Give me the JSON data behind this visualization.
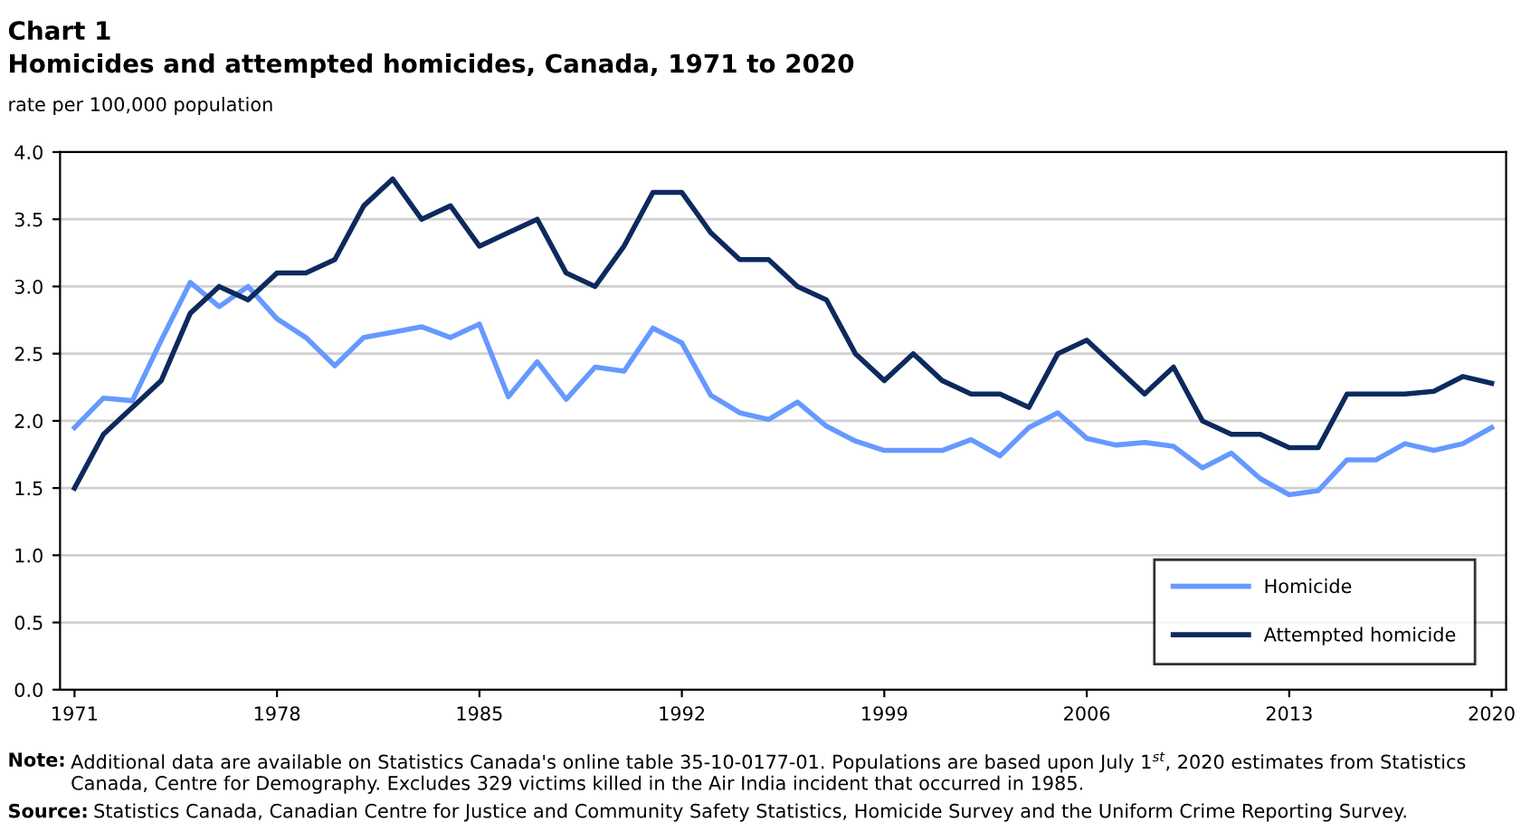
{
  "chart_data": {
    "type": "line",
    "title": "Chart 1",
    "subtitle": "Homicides and attempted homicides, Canada, 1971 to 2020",
    "ylabel": "rate per 100,000 population",
    "x": [
      1971,
      1972,
      1973,
      1974,
      1975,
      1976,
      1977,
      1978,
      1979,
      1980,
      1981,
      1982,
      1983,
      1984,
      1985,
      1986,
      1987,
      1988,
      1989,
      1990,
      1991,
      1992,
      1993,
      1994,
      1995,
      1996,
      1997,
      1998,
      1999,
      2000,
      2001,
      2002,
      2003,
      2004,
      2005,
      2006,
      2007,
      2008,
      2009,
      2010,
      2011,
      2012,
      2013,
      2014,
      2015,
      2016,
      2017,
      2018,
      2019,
      2020
    ],
    "series": [
      {
        "name": "Homicide",
        "color": "#6699ff",
        "values": [
          1.95,
          2.17,
          2.15,
          2.6,
          3.03,
          2.85,
          3.0,
          2.76,
          2.62,
          2.41,
          2.62,
          2.66,
          2.7,
          2.62,
          2.72,
          2.18,
          2.44,
          2.16,
          2.4,
          2.37,
          2.69,
          2.58,
          2.19,
          2.06,
          2.01,
          2.14,
          1.96,
          1.85,
          1.78,
          1.78,
          1.78,
          1.86,
          1.74,
          1.95,
          2.06,
          1.87,
          1.82,
          1.84,
          1.81,
          1.65,
          1.76,
          1.57,
          1.45,
          1.48,
          1.71,
          1.71,
          1.83,
          1.78,
          1.83,
          1.95
        ]
      },
      {
        "name": "Attempted homicide",
        "color": "#0d2a5e",
        "values": [
          1.5,
          1.9,
          2.1,
          2.3,
          2.8,
          3.0,
          2.9,
          3.1,
          3.1,
          3.2,
          3.6,
          3.8,
          3.5,
          3.6,
          3.3,
          3.4,
          3.5,
          3.1,
          3.0,
          3.3,
          3.7,
          3.7,
          3.4,
          3.2,
          3.2,
          3.0,
          2.9,
          2.5,
          2.3,
          2.5,
          2.3,
          2.2,
          2.2,
          2.1,
          2.5,
          2.6,
          2.4,
          2.2,
          2.4,
          2.0,
          1.9,
          1.9,
          1.8,
          1.8,
          2.2,
          2.2,
          2.2,
          2.22,
          2.33,
          2.28
        ]
      }
    ],
    "xlim": [
      1970.5,
      2020.5
    ],
    "xticks": [
      1971,
      1978,
      1985,
      1992,
      1999,
      2006,
      2013,
      2020
    ],
    "ylim": [
      0,
      4.0
    ],
    "yticks": [
      {
        "value": 0,
        "label": "0.0"
      },
      {
        "value": 0.5,
        "label": "0.5"
      },
      {
        "value": 1,
        "label": "1.0"
      },
      {
        "value": 1.5,
        "label": "1.5"
      },
      {
        "value": 2,
        "label": "2.0"
      },
      {
        "value": 2.5,
        "label": "2.5"
      },
      {
        "value": 3,
        "label": "3.0"
      },
      {
        "value": 3.5,
        "label": "3.5"
      },
      {
        "value": 4,
        "label": "4.0"
      }
    ],
    "grid": "y",
    "legend": "bottom right",
    "marker": "none",
    "line_style": "solid",
    "annotations": [
      "Note: Additional data are available on Statistics Canada's online table 35-10-0177-01. Populations are based upon July 1$^{st}$, 2020 estimates from Statistics Canada, Centre for Demography. Excludes 329 victims killed in the Air India incident that occurred in 1985.",
      "Source: Statistics Canada, Canadian Centre for Justice and Community Safety Statistics, Homicide Survey and the Uniform Crime Reporting Survey."
    ]
  }
}
